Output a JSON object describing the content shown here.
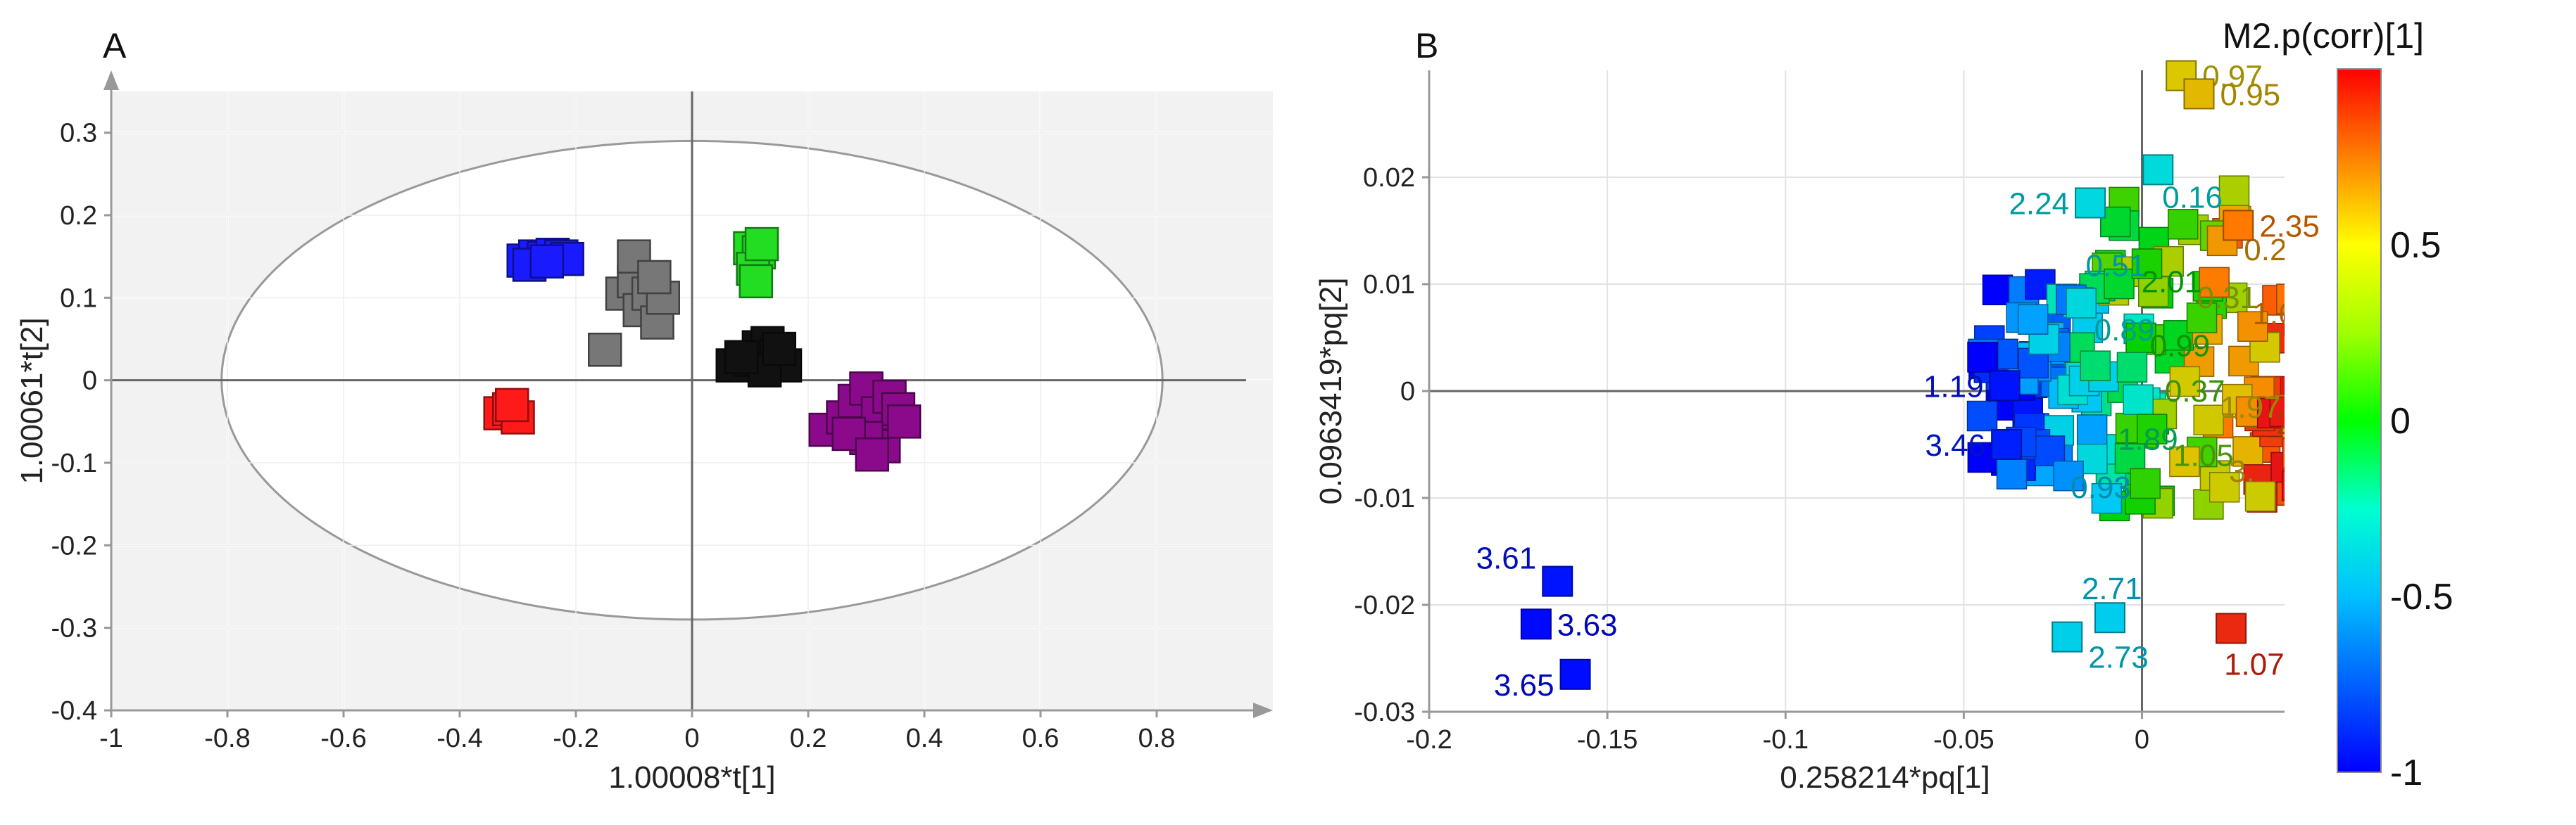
{
  "chart_data": [
    {
      "panel": "A",
      "type": "scatter",
      "xlabel": "1.00008*t[1]",
      "ylabel": "1.00061*t[2]",
      "xlim": [
        -1,
        1
      ],
      "ylim": [
        -0.4,
        0.35
      ],
      "xticks": [
        -1,
        -0.8,
        -0.6,
        -0.4,
        -0.2,
        0,
        0.2,
        0.4,
        0.6,
        0.8
      ],
      "yticks": [
        -0.4,
        -0.3,
        -0.2,
        -0.1,
        0,
        0.1,
        0.2,
        0.3
      ],
      "grid": true,
      "ellipse": {
        "cx": 0,
        "cy": 0,
        "rx": 0.81,
        "ry": 0.29
      },
      "groups": [
        {
          "color": "#1a1aff",
          "points": [
            [
              -0.29,
              0.145
            ],
            [
              -0.27,
              0.15
            ],
            [
              -0.255,
              0.148
            ],
            [
              -0.24,
              0.152
            ],
            [
              -0.225,
              0.15
            ],
            [
              -0.215,
              0.147
            ],
            [
              -0.28,
              0.14
            ],
            [
              -0.25,
              0.144
            ]
          ]
        },
        {
          "color": "#777777",
          "points": [
            [
              -0.15,
              0.037
            ],
            [
              -0.12,
              0.105
            ],
            [
              -0.1,
              0.12
            ],
            [
              -0.09,
              0.085
            ],
            [
              -0.075,
              0.105
            ],
            [
              -0.06,
              0.07
            ],
            [
              -0.05,
              0.1
            ],
            [
              -0.1,
              0.15
            ],
            [
              -0.065,
              0.125
            ]
          ]
        },
        {
          "color": "#22dd22",
          "points": [
            [
              0.1,
              0.16
            ],
            [
              0.115,
              0.155
            ],
            [
              0.105,
              0.135
            ],
            [
              0.11,
              0.12
            ],
            [
              0.12,
              0.165
            ]
          ]
        },
        {
          "color": "#111111",
          "points": [
            [
              0.07,
              0.018
            ],
            [
              0.1,
              0.025
            ],
            [
              0.115,
              0.04
            ],
            [
              0.13,
              0.045
            ],
            [
              0.145,
              0.03
            ],
            [
              0.16,
              0.018
            ],
            [
              0.125,
              0.012
            ],
            [
              0.085,
              0.028
            ],
            [
              0.15,
              0.038
            ]
          ]
        },
        {
          "color": "#8b0a8b",
          "points": [
            [
              0.23,
              -0.06
            ],
            [
              0.26,
              -0.045
            ],
            [
              0.28,
              -0.025
            ],
            [
              0.3,
              -0.01
            ],
            [
              0.32,
              -0.04
            ],
            [
              0.33,
              -0.08
            ],
            [
              0.34,
              -0.02
            ],
            [
              0.355,
              -0.035
            ],
            [
              0.365,
              -0.05
            ],
            [
              0.3,
              -0.07
            ],
            [
              0.27,
              -0.065
            ],
            [
              0.31,
              -0.09
            ]
          ]
        },
        {
          "color": "#ff1a1a",
          "points": [
            [
              -0.33,
              -0.04
            ],
            [
              -0.315,
              -0.035
            ],
            [
              -0.3,
              -0.045
            ],
            [
              -0.31,
              -0.03
            ]
          ]
        }
      ]
    },
    {
      "panel": "B",
      "type": "scatter",
      "xlabel": "0.258214*pq[1]",
      "ylabel": "0.0963419*pq[2]",
      "xlim": [
        -0.2,
        0.04
      ],
      "ylim": [
        -0.03,
        0.03
      ],
      "xticks": [
        -0.2,
        -0.15,
        -0.1,
        -0.05,
        0
      ],
      "yticks": [
        -0.03,
        -0.02,
        -0.01,
        0,
        0.01,
        0.02
      ],
      "grid": true,
      "colorbar": {
        "title": "M2.p(corr)[1]",
        "min": -1,
        "max": 1,
        "ticks": [
          -1,
          -0.5,
          0,
          0.5
        ]
      },
      "labeled_points": [
        {
          "x": 0.011,
          "y": 0.0295,
          "c": 0.5,
          "label": "0.97"
        },
        {
          "x": 0.016,
          "y": 0.0278,
          "c": 0.55,
          "label": "0.95"
        },
        {
          "x": 0.0045,
          "y": 0.0207,
          "c": -0.33,
          "label": "0.16"
        },
        {
          "x": -0.0145,
          "y": 0.0176,
          "c": -0.35,
          "label": "2.24"
        },
        {
          "x": 0.027,
          "y": 0.0155,
          "c": 0.75,
          "label": "2.35"
        },
        {
          "x": -0.0385,
          "y": 0.0005,
          "c": -0.95,
          "label": "1.19"
        },
        {
          "x": -0.038,
          "y": -0.005,
          "c": -0.92,
          "label": "3.46"
        },
        {
          "x": -0.164,
          "y": -0.0178,
          "c": -0.95,
          "label": "3.61"
        },
        {
          "x": -0.17,
          "y": -0.0218,
          "c": -0.98,
          "label": "3.63"
        },
        {
          "x": -0.159,
          "y": -0.0265,
          "c": -0.97,
          "label": "3.65"
        },
        {
          "x": -0.009,
          "y": -0.0212,
          "c": -0.42,
          "label": "2.71"
        },
        {
          "x": -0.021,
          "y": -0.023,
          "c": -0.4,
          "label": "2.73"
        },
        {
          "x": 0.025,
          "y": -0.0222,
          "c": 0.95,
          "label": "1.07"
        }
      ],
      "cluster_labels": [
        "0.93",
        "0.99",
        "3.",
        "0.89",
        "1.05",
        "1.67",
        "1.89",
        "0.31",
        "2.31",
        "2.01",
        "1.97",
        "0.51",
        "0.37",
        "0.21"
      ]
    }
  ],
  "panels": {
    "a_letter": "A",
    "b_letter": "B"
  }
}
